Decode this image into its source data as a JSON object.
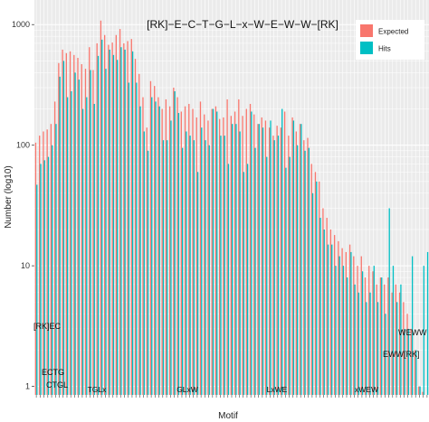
{
  "chart_data": {
    "type": "bar",
    "title": "[RK]−E−C−T−G−L−x−W−E−W−W−[RK]",
    "xlabel": "Motif",
    "ylabel": "Number (log10)",
    "y_scale": "log10",
    "ylim": [
      0.85,
      1600
    ],
    "y_ticks": [
      1,
      10,
      100,
      1000
    ],
    "y_tick_labels": [
      "1",
      "10",
      "100",
      "1000"
    ],
    "grid": true,
    "legend_position": "top-right",
    "colors": {
      "Expected": "#f8766d",
      "Hits": "#00bfc4",
      "overlap": "#5f9a8a",
      "panel": "#ebebeb",
      "grid": "#ffffff"
    },
    "series": [
      {
        "name": "Expected",
        "values": [
          105,
          120,
          130,
          135,
          150,
          230,
          480,
          620,
          580,
          600,
          560,
          530,
          470,
          430,
          650,
          420,
          700,
          1080,
          820,
          680,
          710,
          820,
          920,
          700,
          730,
          760,
          520,
          390,
          250,
          140,
          340,
          310,
          250,
          200,
          240,
          210,
          300,
          250,
          190,
          210,
          220,
          200,
          170,
          230,
          180,
          160,
          200,
          210,
          165,
          170,
          240,
          175,
          190,
          240,
          175,
          200,
          220,
          180,
          150,
          170,
          160,
          140,
          120,
          145,
          140,
          190,
          120,
          170,
          130,
          150,
          110,
          115,
          70,
          60,
          50,
          30,
          25,
          20,
          18,
          16,
          14,
          13,
          15,
          12,
          10,
          12,
          8,
          10,
          9,
          7,
          8,
          7,
          8,
          6,
          7,
          6,
          5,
          4,
          3,
          2,
          1,
          0.9,
          0.8
        ]
      },
      {
        "name": "Hits",
        "values": [
          47,
          70,
          75,
          80,
          100,
          150,
          370,
          500,
          250,
          280,
          400,
          350,
          200,
          250,
          420,
          220,
          550,
          750,
          430,
          620,
          560,
          510,
          650,
          620,
          330,
          600,
          330,
          210,
          130,
          90,
          250,
          230,
          210,
          110,
          110,
          160,
          280,
          185,
          95,
          130,
          120,
          110,
          60,
          140,
          110,
          100,
          200,
          190,
          120,
          120,
          70,
          150,
          150,
          130,
          60,
          70,
          190,
          95,
          150,
          140,
          80,
          160,
          110,
          120,
          200,
          65,
          80,
          160,
          100,
          150,
          90,
          95,
          40,
          50,
          25,
          20,
          15,
          15,
          10,
          12,
          10,
          8,
          13,
          7,
          6,
          9,
          5,
          6,
          10,
          5,
          8,
          4,
          30,
          10,
          5,
          7,
          3,
          3,
          12,
          2,
          1,
          10,
          13
        ]
      }
    ],
    "segments": [
      {
        "label": "TGLx"
      },
      {
        "label": "GLxW"
      },
      {
        "label": "LxWE"
      },
      {
        "label": "xWEW"
      }
    ],
    "annotations": [
      {
        "label": "[RK]EC"
      },
      {
        "label": "ECTG"
      },
      {
        "label": "CTGL"
      },
      {
        "label": "WEWW"
      },
      {
        "label": "EWW[RK]"
      }
    ]
  },
  "legend": {
    "expected_label": "Expected",
    "hits_label": "Hits"
  }
}
